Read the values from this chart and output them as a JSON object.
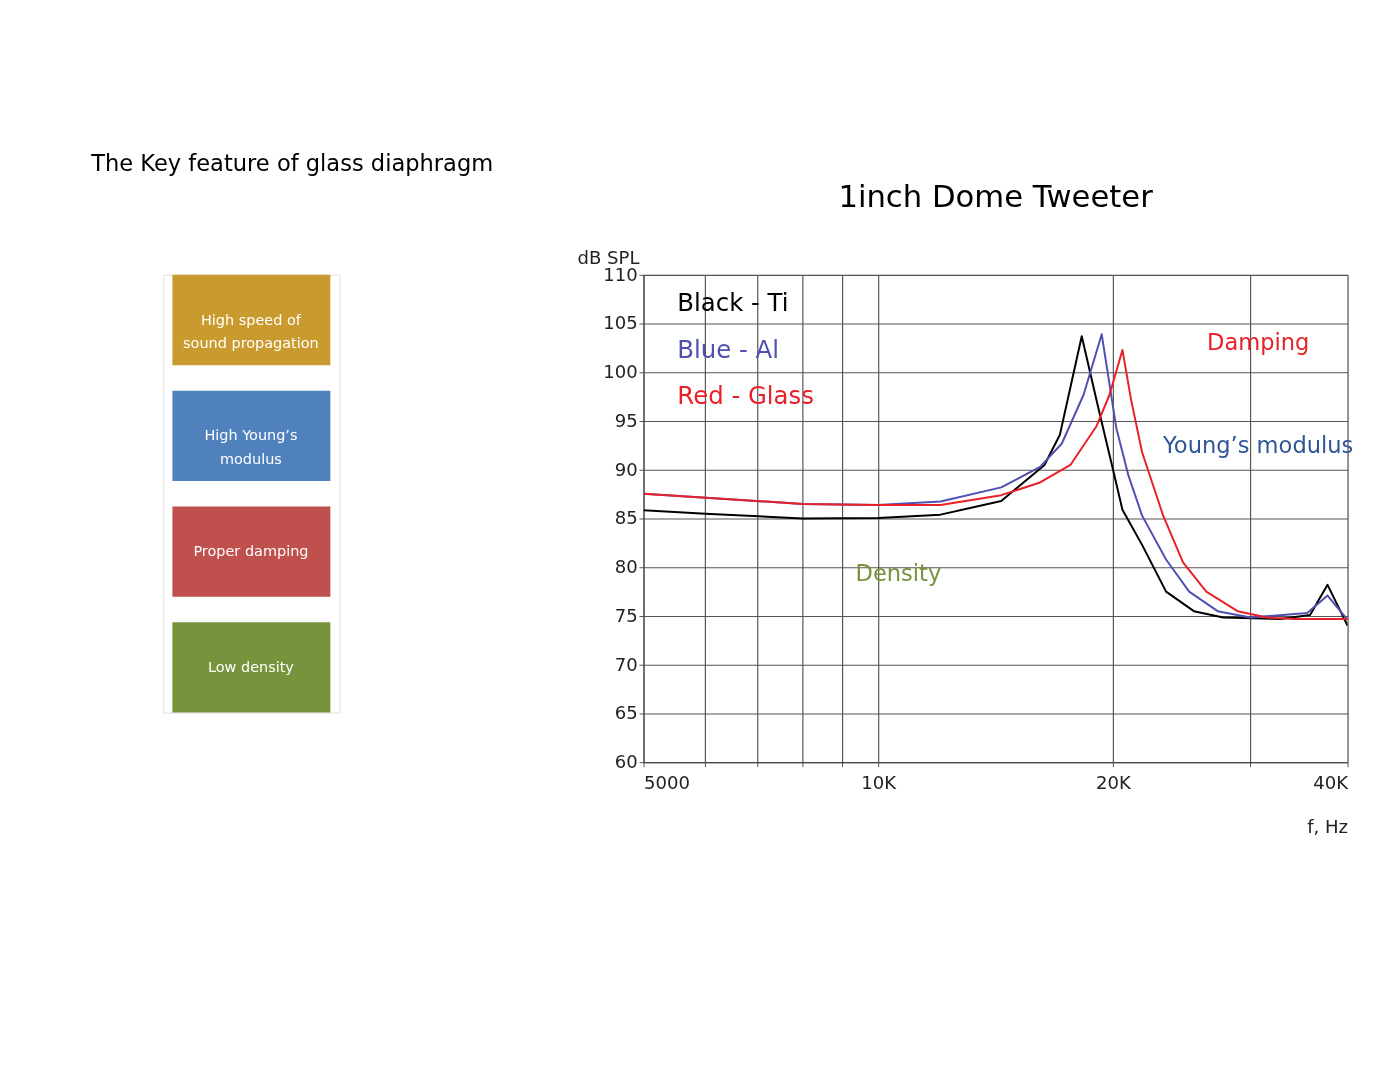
{
  "chart_data": [
    {
      "type": "other",
      "title": "The Key feature of glass diaphragm",
      "categories": [
        "High speed of sound propagation",
        "High Young’s modulus",
        "Proper damping",
        "Low density"
      ],
      "colors": [
        "#c99a2e",
        "#4f81bd",
        "#c0504d",
        "#77933c"
      ]
    },
    {
      "type": "line",
      "title": "1inch Dome Tweeter",
      "xlabel": "f, Hz",
      "ylabel": "dB SPL",
      "log": "x",
      "grid": true,
      "legend": "top left",
      "xlim": [
        5000,
        40000
      ],
      "ylim": [
        60,
        110
      ],
      "xticks": [
        5000,
        {
          "value": 6000,
          "label": null
        },
        {
          "value": 7000,
          "label": null
        },
        {
          "value": 8000,
          "label": null
        },
        {
          "value": 9000,
          "label": null
        },
        {
          "value": 10000,
          "label": "10K"
        },
        {
          "value": 20000,
          "label": "20K"
        },
        {
          "value": 30000,
          "label": null
        },
        {
          "value": 40000,
          "label": "40K"
        }
      ],
      "yticks": [
        60,
        65,
        70,
        75,
        80,
        85,
        90,
        95,
        100,
        105,
        110
      ],
      "series": [
        {
          "name": "Black - Ti",
          "color": "#000000",
          "x": [
            5000,
            6000,
            8000,
            10000,
            12020,
            14380,
            16340,
            17100,
            18240,
            19200,
            20000,
            20570,
            21800,
            23400,
            25400,
            27700,
            32800,
            35800,
            37700,
            40000
          ],
          "values": [
            85.85,
            85.5,
            85.0,
            85.05,
            85.4,
            86.8,
            90.5,
            93.6,
            103.7,
            96.0,
            90.05,
            85.9,
            82.3,
            77.5,
            75.5,
            74.85,
            74.7,
            75.1,
            78.2,
            74.0
          ]
        },
        {
          "name": "Blue - Al",
          "color": "#5050b0",
          "x": [
            5000,
            8000,
            10000,
            12020,
            14380,
            16130,
            17200,
            18340,
            19350,
            20200,
            20940,
            21800,
            23400,
            25050,
            27250,
            30030,
            35500,
            37700,
            40000
          ],
          "values": [
            87.55,
            86.5,
            86.4,
            86.75,
            88.2,
            90.3,
            92.7,
            97.7,
            103.9,
            94.3,
            89.4,
            85.3,
            80.8,
            77.5,
            75.5,
            74.85,
            75.3,
            77.1,
            74.6
          ]
        },
        {
          "name": "Red - Glass",
          "color": "#e8202a",
          "x": [
            5000,
            8000,
            10000,
            12020,
            14380,
            16130,
            17640,
            19060,
            19800,
            20570,
            21100,
            21800,
            23200,
            24600,
            26350,
            28900,
            31540,
            34300,
            40000
          ],
          "values": [
            87.55,
            86.5,
            86.4,
            86.4,
            87.4,
            88.7,
            90.5,
            94.5,
            97.7,
            102.3,
            97.2,
            91.8,
            85.3,
            80.5,
            77.5,
            75.5,
            74.85,
            74.7,
            74.7
          ]
        }
      ],
      "annotations": [
        "Damping",
        "Young’s modulus",
        "Density"
      ]
    }
  ]
}
